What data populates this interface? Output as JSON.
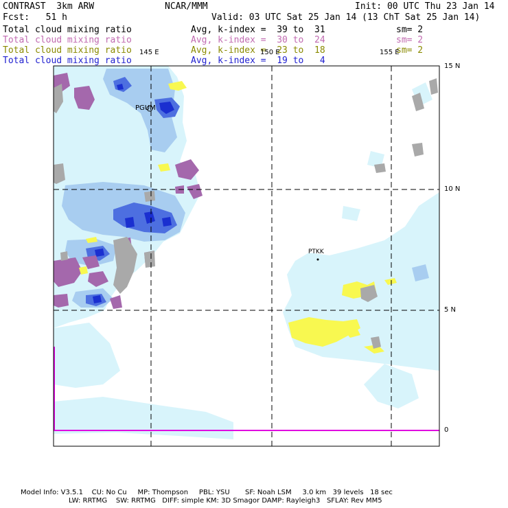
{
  "header": {
    "model": "CONTRAST  3km ARW",
    "org": "NCAR/MMM",
    "init": "Init: 00 UTC Thu 23 Jan 14",
    "fcst": "Fcst:   51 h",
    "valid": "Valid: 03 UTC Sat 25 Jan 14 (13 ChT Sat 25 Jan 14)"
  },
  "legend": [
    {
      "field": "Total cloud mixing ratio",
      "range": "Avg, k-index =  39 to  31",
      "smooth": "sm= 2",
      "color": "#000000"
    },
    {
      "field": "Total cloud mixing ratio",
      "range": "Avg, k-index =  30 to  24",
      "smooth": "sm= 2",
      "color": "#c06ab0"
    },
    {
      "field": "Total cloud mixing ratio",
      "range": "Avg, k-index =  23 to  18",
      "smooth": "sm= 2",
      "color": "#8a8a00"
    },
    {
      "field": "Total cloud mixing ratio",
      "range": "Avg, k-index =  19 to   4",
      "smooth": "",
      "color": "#2020d0"
    }
  ],
  "map": {
    "lon_labels": [
      "145 E",
      "150 E",
      "155 E"
    ],
    "lat_labels": [
      "15 N",
      "10 N",
      "5 N",
      "0"
    ],
    "stations": [
      "PGUM",
      "PTKK"
    ],
    "colors": {
      "cloud_light": "#d8f4fb",
      "cloud_medium": "#a8cdf0",
      "cloud_dense": "#4d6fe0",
      "cloud_core": "#1a2fd0",
      "mid_cloud": "#a468ac",
      "low_cloud": "#f8f850",
      "land": "#a9a9a9",
      "equator_line": "#e000e0"
    }
  },
  "footer": {
    "line1": "Model Info: V3.5.1    CU: No Cu     MP: Thompson     PBL: YSU       SF: Noah LSM     3.0 km   39 levels   18 sec",
    "line2": "LW: RRTMG    SW: RRTMG   DIFF: simple KM: 3D Smagor DAMP: Rayleigh3   SFLAY: Rev MM5"
  }
}
